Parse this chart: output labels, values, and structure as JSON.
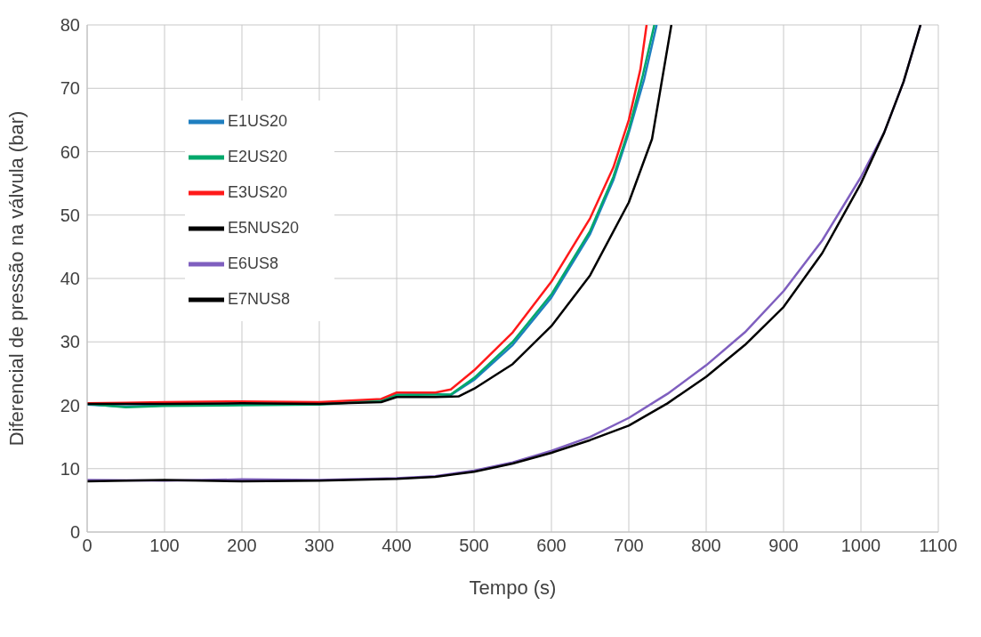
{
  "chart_data": {
    "type": "line",
    "xlabel": "Tempo (s)",
    "ylabel": "Diferencial de pressão na válvula (bar)",
    "xlim": [
      0,
      1100
    ],
    "xticks": [
      0,
      100,
      200,
      300,
      400,
      500,
      600,
      700,
      800,
      900,
      1000,
      1100
    ],
    "ylim": [
      0,
      80
    ],
    "yticks": [
      0,
      10,
      20,
      30,
      40,
      50,
      60,
      70,
      80
    ],
    "grid": true,
    "legend": "top left",
    "marker": "none",
    "line_style": "solid",
    "series": [
      {
        "name": "E1US20",
        "color": "#1f7fc0",
        "x": [
          0,
          50,
          100,
          200,
          300,
          380,
          400,
          450,
          470,
          500,
          550,
          600,
          650,
          680,
          700,
          720,
          736
        ],
        "values": [
          20.1,
          19.8,
          20.0,
          20.1,
          20.2,
          20.8,
          21.7,
          21.8,
          21.6,
          24.0,
          29.5,
          37.0,
          47.0,
          55.5,
          63.0,
          71.5,
          80
        ]
      },
      {
        "name": "E2US20",
        "color": "#00a86b",
        "x": [
          0,
          50,
          100,
          200,
          300,
          380,
          400,
          450,
          470,
          500,
          550,
          600,
          650,
          680,
          700,
          718,
          733
        ],
        "values": [
          20.2,
          19.7,
          19.9,
          20.0,
          20.1,
          20.7,
          21.6,
          21.7,
          21.7,
          24.3,
          30.0,
          37.5,
          47.5,
          56.0,
          63.5,
          72.0,
          80
        ]
      },
      {
        "name": "E3US20",
        "color": "#ff1a1a",
        "x": [
          0,
          50,
          100,
          200,
          300,
          380,
          400,
          450,
          470,
          500,
          550,
          600,
          650,
          680,
          700,
          715,
          723
        ],
        "values": [
          20.3,
          20.4,
          20.5,
          20.6,
          20.5,
          21.0,
          22.0,
          22.0,
          22.5,
          25.5,
          31.5,
          39.5,
          49.5,
          57.5,
          65.0,
          73.0,
          80
        ]
      },
      {
        "name": "E5NUS20",
        "color": "#000000",
        "x": [
          0,
          100,
          200,
          300,
          380,
          400,
          450,
          480,
          500,
          550,
          600,
          650,
          700,
          730,
          755
        ],
        "values": [
          20.2,
          20.2,
          20.3,
          20.2,
          20.5,
          21.3,
          21.3,
          21.4,
          22.6,
          26.5,
          32.5,
          40.5,
          52.0,
          62.0,
          80
        ]
      },
      {
        "name": "E6US8",
        "color": "#7f5fbf",
        "x": [
          0,
          100,
          200,
          300,
          400,
          450,
          500,
          550,
          600,
          650,
          700,
          750,
          800,
          850,
          900,
          950,
          1000,
          1030,
          1055,
          1077
        ],
        "values": [
          8.2,
          8.1,
          8.3,
          8.2,
          8.5,
          8.8,
          9.7,
          11.0,
          12.8,
          15.0,
          18.0,
          21.8,
          26.3,
          31.5,
          38.0,
          46.0,
          56.0,
          63.0,
          71.0,
          80
        ]
      },
      {
        "name": "E7NUS8",
        "color": "#000000",
        "x": [
          0,
          100,
          200,
          300,
          400,
          450,
          500,
          550,
          600,
          650,
          700,
          750,
          800,
          850,
          900,
          950,
          1000,
          1030,
          1055,
          1077
        ],
        "values": [
          8.0,
          8.2,
          8.0,
          8.1,
          8.4,
          8.7,
          9.5,
          10.8,
          12.5,
          14.5,
          16.8,
          20.3,
          24.5,
          29.5,
          35.5,
          44.0,
          55.0,
          63.0,
          71.0,
          80
        ]
      }
    ]
  }
}
